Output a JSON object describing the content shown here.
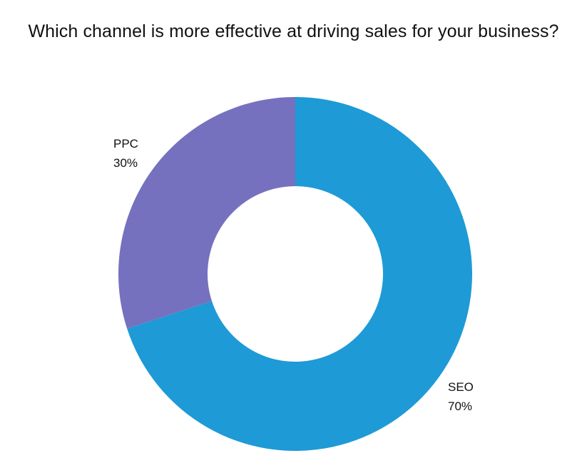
{
  "chart_data": {
    "type": "pie",
    "variant": "donut",
    "title": "Which channel is more effective at driving sales for your business?",
    "slices": [
      {
        "label": "SEO",
        "value": 70,
        "value_label": "70%",
        "color": "#1e9ad6"
      },
      {
        "label": "PPC",
        "value": 30,
        "value_label": "30%",
        "color": "#7571be"
      }
    ],
    "legend": "none",
    "start_angle_deg": 0,
    "direction": "clockwise"
  }
}
